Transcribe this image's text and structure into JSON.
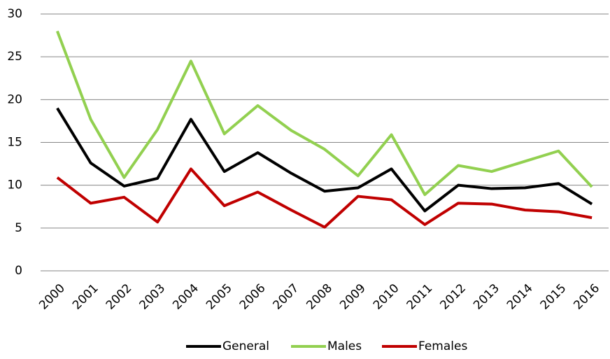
{
  "chart_data": {
    "type": "line",
    "categories": [
      "2000",
      "2001",
      "2002",
      "2003",
      "2004",
      "2005",
      "2006",
      "2007",
      "2008",
      "2009",
      "2010",
      "2011",
      "2012",
      "2013",
      "2014",
      "2015",
      "2016"
    ],
    "series": [
      {
        "name": "General",
        "color": "#000000",
        "values": [
          19.0,
          12.6,
          9.9,
          10.8,
          17.7,
          11.6,
          13.8,
          11.4,
          9.3,
          9.7,
          11.9,
          7.0,
          10.0,
          9.6,
          9.7,
          10.2,
          7.8
        ]
      },
      {
        "name": "Males",
        "color": "#92d050",
        "values": [
          28.0,
          17.7,
          10.9,
          16.5,
          24.5,
          16.0,
          19.3,
          16.4,
          14.2,
          11.1,
          15.9,
          8.9,
          12.3,
          11.6,
          12.8,
          14.0,
          9.8
        ]
      },
      {
        "name": "Females",
        "color": "#c00000",
        "values": [
          10.9,
          7.9,
          8.6,
          5.7,
          11.9,
          7.6,
          9.2,
          7.1,
          5.1,
          8.7,
          8.3,
          5.4,
          7.9,
          7.8,
          7.1,
          6.9,
          6.2
        ]
      }
    ],
    "ylim": [
      0,
      30
    ],
    "yticks": [
      0,
      5,
      10,
      15,
      20,
      25,
      30
    ],
    "grid": true,
    "legend": "bottom"
  }
}
